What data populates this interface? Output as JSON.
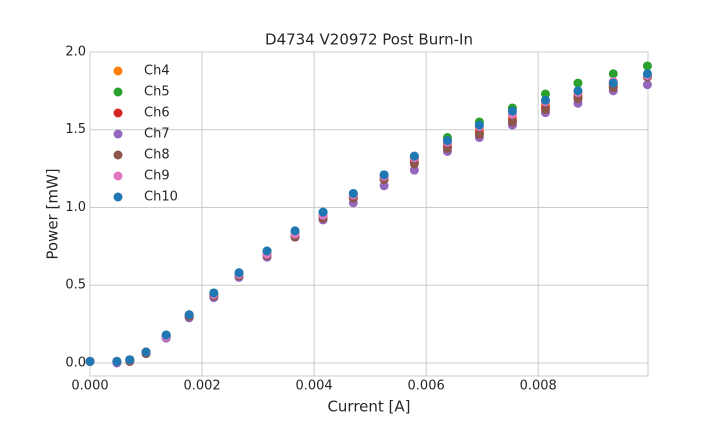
{
  "chart_data": {
    "type": "scatter",
    "title": "D4734 V20972 Post Burn-In",
    "x_label": "Current [A]",
    "y_label": "Power [mW]",
    "x": [
      0,
      0.00048,
      0.00071,
      0.001,
      0.00136,
      0.00177,
      0.00221,
      0.00266,
      0.00316,
      0.00366,
      0.00416,
      0.0047,
      0.00525,
      0.00579,
      0.00638,
      0.00695,
      0.00754,
      0.00813,
      0.00871,
      0.00934,
      0.00995
    ],
    "series": [
      {
        "name": "Ch4",
        "color": "#ff7f0e",
        "values": [
          0.01,
          0.01,
          0.02,
          0.07,
          0.17,
          0.3,
          0.44,
          0.57,
          0.7,
          0.82,
          0.95,
          1.07,
          1.19,
          1.31,
          1.41,
          1.5,
          1.58,
          1.66,
          1.73,
          1.79,
          1.84
        ]
      },
      {
        "name": "Ch5",
        "color": "#2ca02c",
        "values": [
          0.01,
          0.01,
          0.02,
          0.07,
          0.18,
          0.31,
          0.45,
          0.58,
          0.72,
          0.84,
          0.97,
          1.09,
          1.21,
          1.33,
          1.45,
          1.55,
          1.64,
          1.73,
          1.8,
          1.86,
          1.91
        ]
      },
      {
        "name": "Ch6",
        "color": "#d62728",
        "values": [
          0.01,
          0.01,
          0.02,
          0.07,
          0.17,
          0.3,
          0.43,
          0.56,
          0.69,
          0.81,
          0.93,
          1.06,
          1.18,
          1.29,
          1.39,
          1.48,
          1.56,
          1.64,
          1.71,
          1.78,
          1.84
        ]
      },
      {
        "name": "Ch7",
        "color": "#9467bd",
        "values": [
          0.01,
          0.0,
          0.01,
          0.06,
          0.16,
          0.29,
          0.42,
          0.55,
          0.68,
          0.81,
          0.92,
          1.03,
          1.14,
          1.24,
          1.36,
          1.45,
          1.53,
          1.61,
          1.67,
          1.75,
          1.79
        ]
      },
      {
        "name": "Ch8",
        "color": "#8c564b",
        "values": [
          0.01,
          0.01,
          0.01,
          0.06,
          0.17,
          0.3,
          0.43,
          0.56,
          0.69,
          0.81,
          0.93,
          1.06,
          1.18,
          1.28,
          1.38,
          1.47,
          1.55,
          1.63,
          1.7,
          1.77,
          1.84
        ]
      },
      {
        "name": "Ch9",
        "color": "#e377c2",
        "values": [
          0.01,
          0.01,
          0.02,
          0.07,
          0.17,
          0.31,
          0.44,
          0.57,
          0.7,
          0.83,
          0.95,
          1.08,
          1.2,
          1.32,
          1.42,
          1.52,
          1.6,
          1.68,
          1.74,
          1.81,
          1.85
        ]
      },
      {
        "name": "Ch10",
        "color": "#1f77b4",
        "values": [
          0.01,
          0.01,
          0.02,
          0.07,
          0.18,
          0.31,
          0.45,
          0.58,
          0.72,
          0.85,
          0.97,
          1.09,
          1.21,
          1.33,
          1.43,
          1.53,
          1.62,
          1.69,
          1.75,
          1.8,
          1.86
        ]
      }
    ],
    "xlim": [
      0,
      0.00996
    ],
    "ylim": [
      -0.084,
      2.0
    ],
    "xticks": [
      {
        "value": 0,
        "label": "0.000"
      },
      {
        "value": 0.002,
        "label": "0.002"
      },
      {
        "value": 0.004,
        "label": "0.004"
      },
      {
        "value": 0.006,
        "label": "0.006"
      },
      {
        "value": 0.008,
        "label": "0.008"
      }
    ],
    "yticks": [
      {
        "value": 0,
        "label": "0.0"
      },
      0.5,
      {
        "value": 1,
        "label": "1.0"
      },
      1.5,
      {
        "value": 2,
        "label": "2.0"
      }
    ],
    "grid": true,
    "legend": "upper left"
  }
}
